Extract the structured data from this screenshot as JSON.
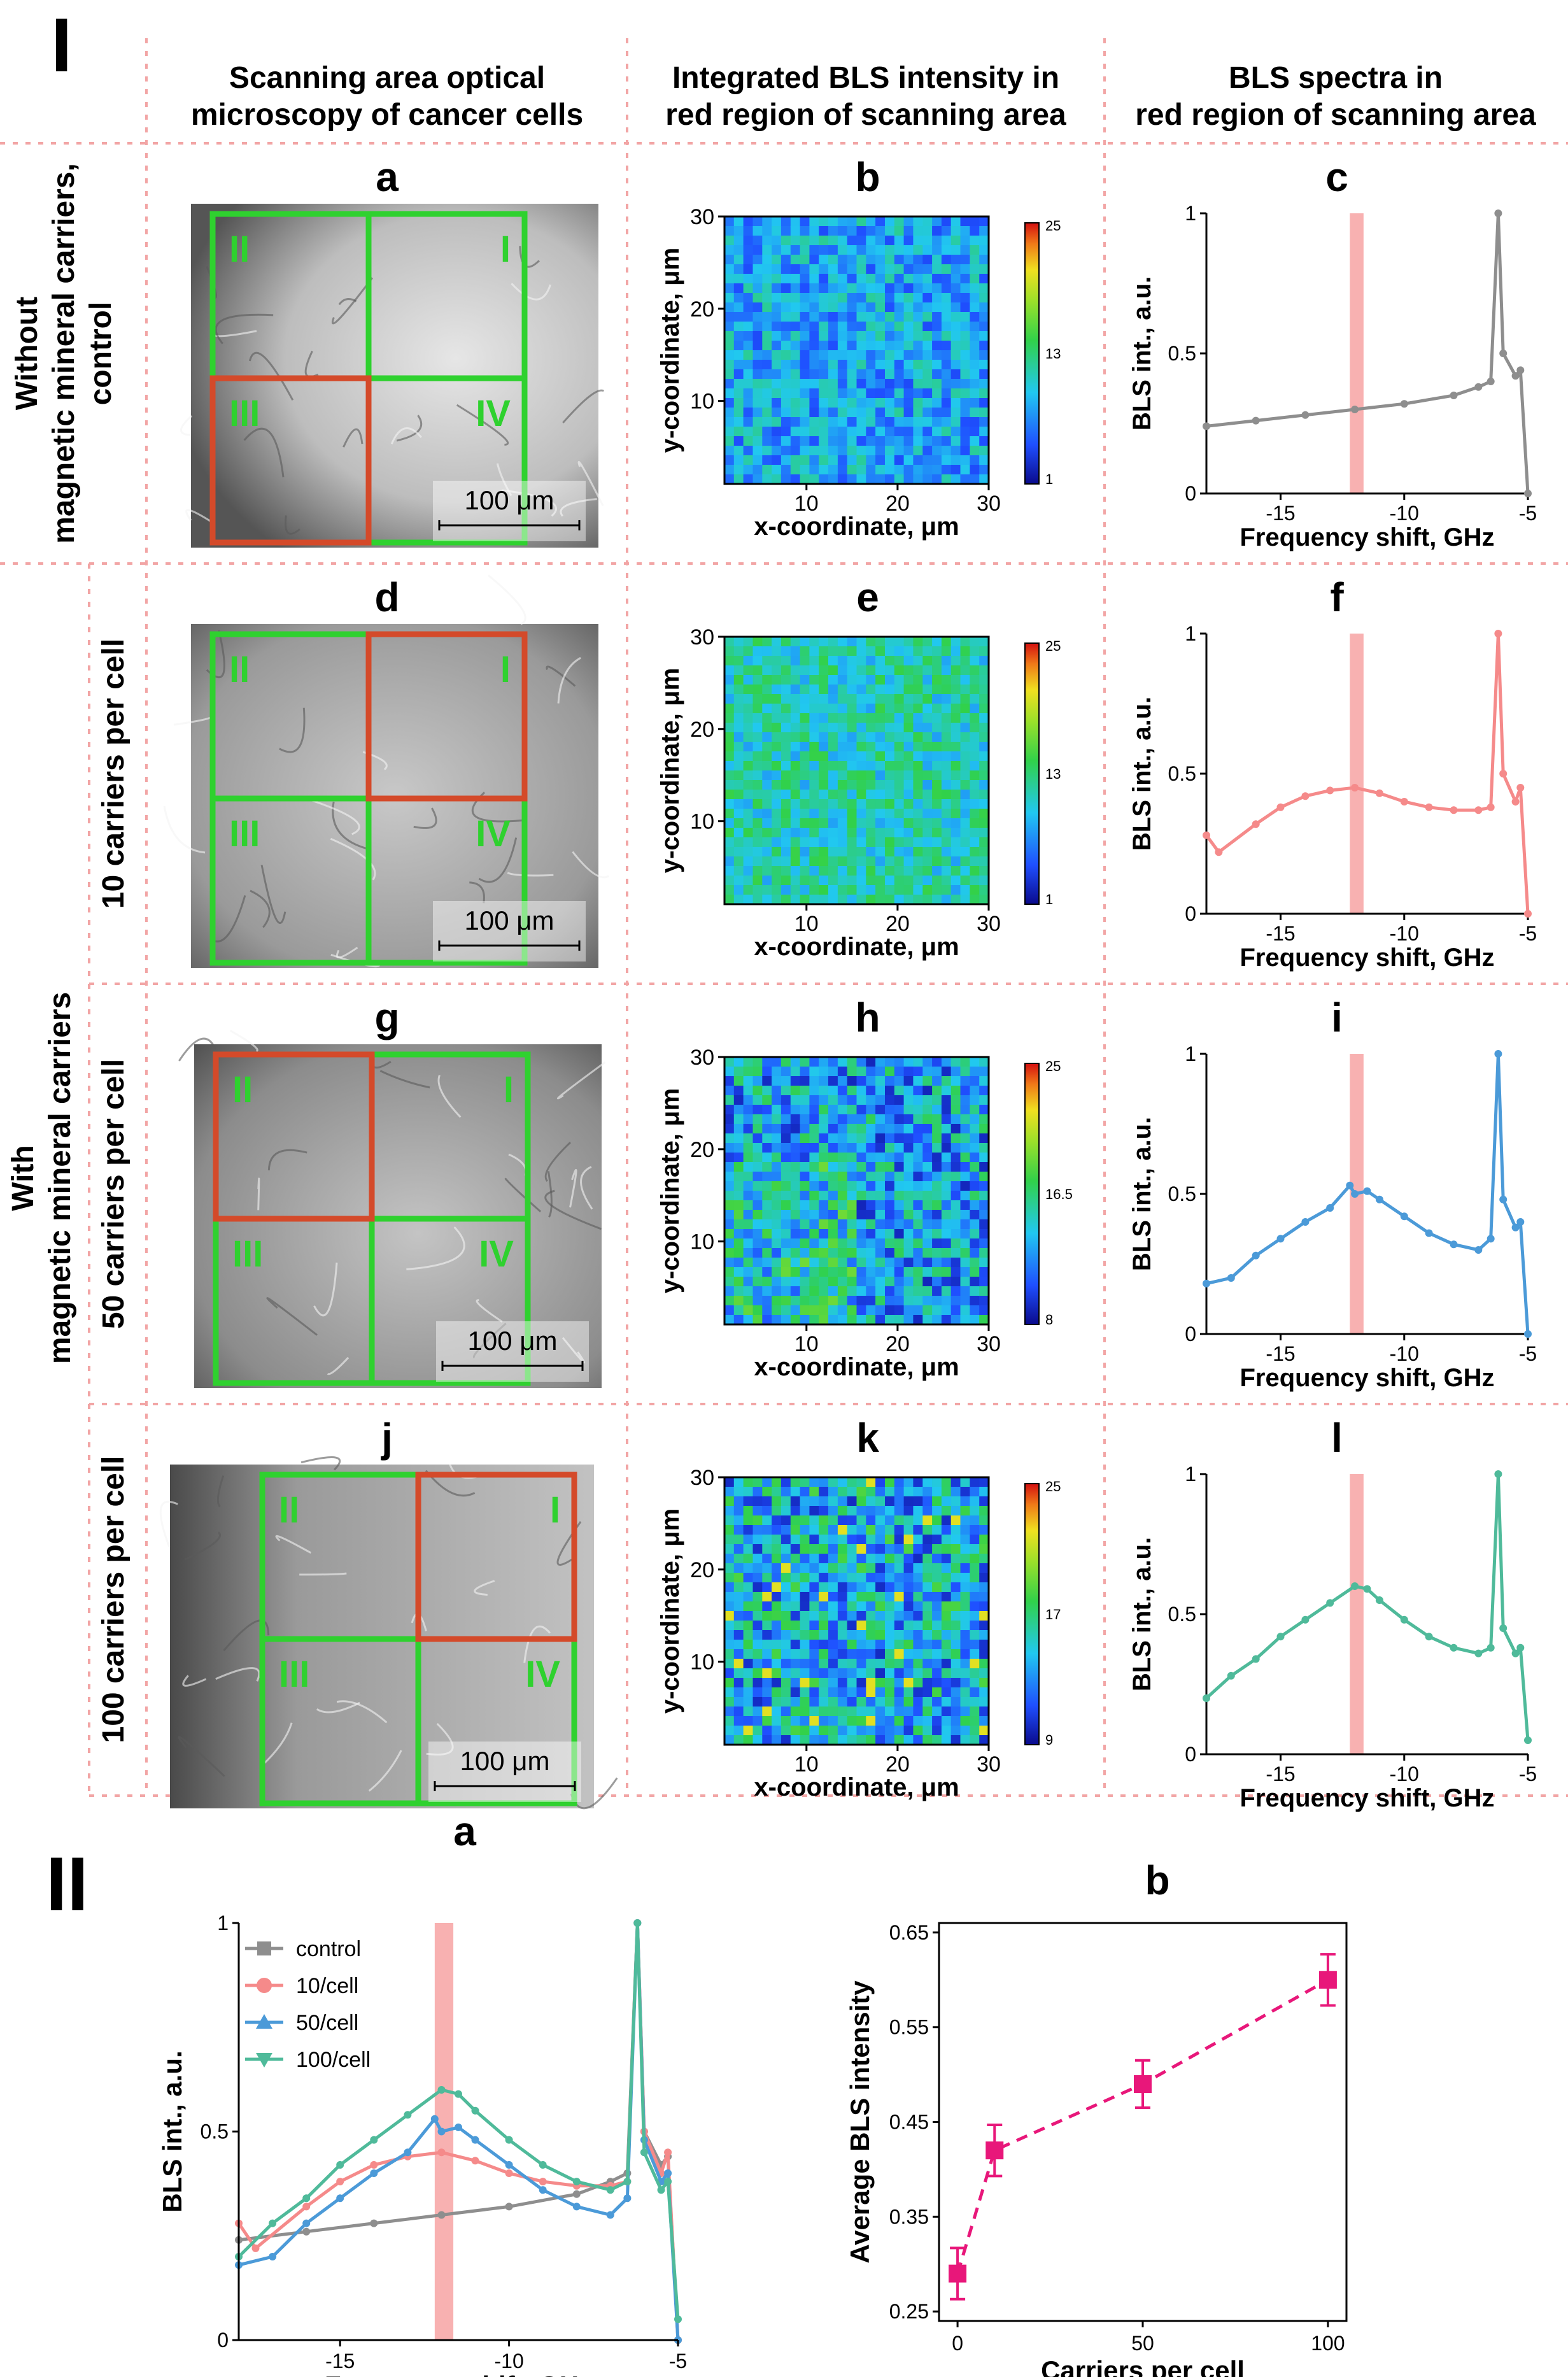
{
  "section_labels": {
    "part1": "I",
    "part2": "II"
  },
  "column_headers": [
    {
      "line1": "Scanning area optical",
      "line2": "microscopy of cancer cells"
    },
    {
      "line1": "Integrated BLS intensity in",
      "line2": "red region of scanning area"
    },
    {
      "line1": "BLS spectra in",
      "line2": "red region of scanning area"
    }
  ],
  "row_labels": {
    "without_line1": "Without",
    "without_line2": "magnetic mineral carriers,",
    "without_line3": "control",
    "with_line1": "With",
    "with_line2": "magnetic mineral carriers",
    "row2": "10 carriers per cell",
    "row3": "50 carriers per cell",
    "row4": "100 carriers per cell"
  },
  "quadrant_labels": [
    "I",
    "II",
    "III",
    "IV"
  ],
  "scale_bar": "100 μm",
  "rows": [
    {
      "letters": [
        "a",
        "b",
        "c"
      ],
      "highlight": "III",
      "colorbar": {
        "min": "1",
        "mid": "13",
        "max": "25"
      },
      "series_color": "#8e8e8e",
      "key": "control"
    },
    {
      "letters": [
        "d",
        "e",
        "f"
      ],
      "highlight": "I",
      "colorbar": {
        "min": "1",
        "mid": "13",
        "max": "25"
      },
      "series_color": "#f58a8a",
      "key": "10"
    },
    {
      "letters": [
        "g",
        "h",
        "i"
      ],
      "highlight": "II",
      "colorbar": {
        "min": "8",
        "mid": "16.5",
        "max": "25"
      },
      "series_color": "#4b9ad8",
      "key": "50"
    },
    {
      "letters": [
        "j",
        "k",
        "l"
      ],
      "highlight": "I",
      "colorbar": {
        "min": "9",
        "mid": "17",
        "max": "25"
      },
      "series_color": "#4fba9a",
      "key": "100"
    }
  ],
  "heatmap_axes": {
    "xlabel": "x-coordinate, μm",
    "ylabel": "y-coordinate, μm",
    "xticks": [
      "10",
      "20",
      "30"
    ],
    "yticks": [
      "10",
      "20",
      "30"
    ]
  },
  "spectra_axes": {
    "xlabel": "Frequency shift, GHz",
    "ylabel": "BLS int., a.u.",
    "xticks": [
      "-15",
      "-10",
      "-5"
    ],
    "yticks": [
      "0",
      "0.5",
      "1"
    ]
  },
  "part2": {
    "letters": [
      "a",
      "b"
    ],
    "legend": [
      "control",
      "10/cell",
      "50/cell",
      "100/cell"
    ]
  },
  "colors": {
    "red_box": "#d44a2a",
    "green_box": "#2fd12f",
    "band": "#f7a8a8",
    "divider": "#f2a5a5",
    "magenta": "#e8177a"
  },
  "chart_data": [
    {
      "type": "line",
      "title": "BLS spectra in red region of scanning area",
      "xlabel": "Frequency shift, GHz",
      "ylabel": "BLS int., a.u.",
      "xlim": [
        -18,
        -5
      ],
      "ylim": [
        0,
        1
      ],
      "highlight_band_x": -12,
      "series": [
        {
          "name": "control",
          "points": [
            [
              -18,
              0.24
            ],
            [
              -16,
              0.26
            ],
            [
              -14,
              0.28
            ],
            [
              -12,
              0.3
            ],
            [
              -10,
              0.32
            ],
            [
              -8,
              0.35
            ],
            [
              -7,
              0.38
            ],
            [
              -6.5,
              0.4
            ],
            [
              -6.2,
              1.0
            ],
            [
              -6.0,
              0.5
            ],
            [
              -5.5,
              0.42
            ],
            [
              -5.3,
              0.44
            ],
            [
              -5,
              0.0
            ]
          ]
        },
        {
          "name": "10/cell",
          "points": [
            [
              -18,
              0.28
            ],
            [
              -17.5,
              0.22
            ],
            [
              -16,
              0.32
            ],
            [
              -15,
              0.38
            ],
            [
              -14,
              0.42
            ],
            [
              -13,
              0.44
            ],
            [
              -12,
              0.45
            ],
            [
              -11,
              0.43
            ],
            [
              -10,
              0.4
            ],
            [
              -9,
              0.38
            ],
            [
              -8,
              0.37
            ],
            [
              -7,
              0.37
            ],
            [
              -6.5,
              0.38
            ],
            [
              -6.2,
              1.0
            ],
            [
              -6.0,
              0.5
            ],
            [
              -5.5,
              0.4
            ],
            [
              -5.3,
              0.45
            ],
            [
              -5,
              0.0
            ]
          ]
        },
        {
          "name": "50/cell",
          "points": [
            [
              -18,
              0.18
            ],
            [
              -17,
              0.2
            ],
            [
              -16,
              0.28
            ],
            [
              -15,
              0.34
            ],
            [
              -14,
              0.4
            ],
            [
              -13,
              0.45
            ],
            [
              -12.2,
              0.53
            ],
            [
              -12,
              0.5
            ],
            [
              -11.5,
              0.51
            ],
            [
              -11,
              0.48
            ],
            [
              -10,
              0.42
            ],
            [
              -9,
              0.36
            ],
            [
              -8,
              0.32
            ],
            [
              -7,
              0.3
            ],
            [
              -6.5,
              0.34
            ],
            [
              -6.2,
              1.0
            ],
            [
              -6.0,
              0.48
            ],
            [
              -5.5,
              0.38
            ],
            [
              -5.3,
              0.4
            ],
            [
              -5,
              0.0
            ]
          ]
        },
        {
          "name": "100/cell",
          "points": [
            [
              -18,
              0.2
            ],
            [
              -17,
              0.28
            ],
            [
              -16,
              0.34
            ],
            [
              -15,
              0.42
            ],
            [
              -14,
              0.48
            ],
            [
              -13,
              0.54
            ],
            [
              -12,
              0.6
            ],
            [
              -11.5,
              0.59
            ],
            [
              -11,
              0.55
            ],
            [
              -10,
              0.48
            ],
            [
              -9,
              0.42
            ],
            [
              -8,
              0.38
            ],
            [
              -7,
              0.36
            ],
            [
              -6.5,
              0.38
            ],
            [
              -6.2,
              1.0
            ],
            [
              -6.0,
              0.45
            ],
            [
              -5.5,
              0.36
            ],
            [
              -5.3,
              0.38
            ],
            [
              -5,
              0.05
            ]
          ]
        }
      ]
    },
    {
      "type": "scatter",
      "xlabel": "Carriers per cell",
      "ylabel": "Average BLS intensity",
      "xlim": [
        -5,
        105
      ],
      "ylim": [
        0.24,
        0.66
      ],
      "xticks": [
        "0",
        "50",
        "100"
      ],
      "yticks": [
        "0.25",
        "0.35",
        "0.45",
        "0.55",
        "0.65"
      ],
      "x": [
        0,
        10,
        50,
        100
      ],
      "y": [
        0.29,
        0.42,
        0.49,
        0.6
      ],
      "errors": [
        0.027,
        0.027,
        0.025,
        0.027
      ],
      "connector": "dashed"
    }
  ]
}
